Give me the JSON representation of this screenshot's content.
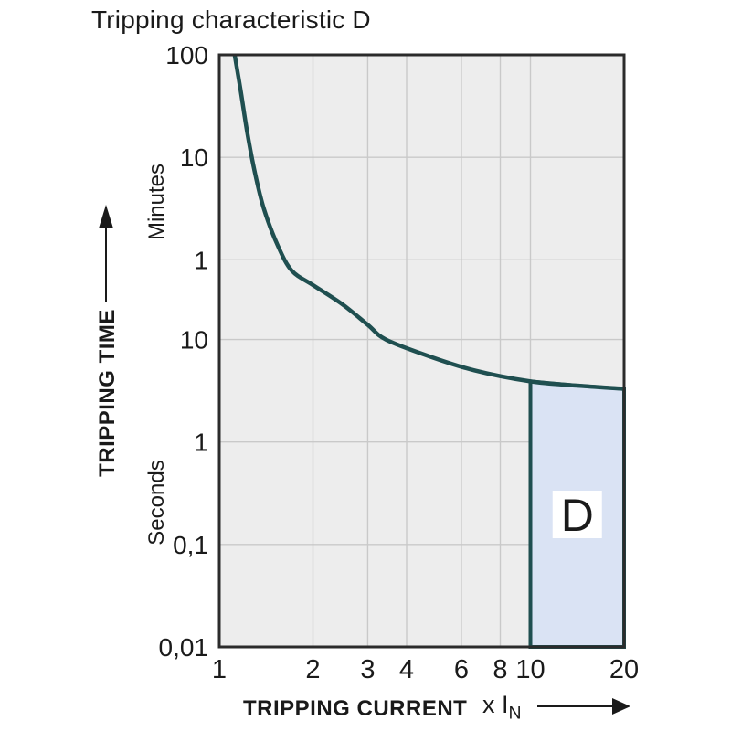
{
  "title": "Tripping characteristic D",
  "colors": {
    "curve": "#1f4f50",
    "region_fill": "#dae3f4",
    "region_border": "#1f4f50",
    "region_label_bg": "#ffffff",
    "plot_bg": "#ededed",
    "gridline": "#c9c9c9",
    "plot_border": "#2b2b2b",
    "text": "#1a1a1a"
  },
  "chart_data": {
    "type": "line",
    "title": "Tripping characteristic D",
    "x_axis": {
      "label": "TRIPPING CURRENT",
      "unit_prefix": "x I",
      "unit_sub": "N",
      "scale": "log",
      "range": [
        1,
        20
      ],
      "ticks": [
        {
          "value": 1,
          "label": "1"
        },
        {
          "value": 2,
          "label": "2"
        },
        {
          "value": 3,
          "label": "3"
        },
        {
          "value": 4,
          "label": "4"
        },
        {
          "value": 6,
          "label": "6"
        },
        {
          "value": 8,
          "label": "8"
        },
        {
          "value": 10,
          "label": "10"
        },
        {
          "value": 20,
          "label": "20"
        }
      ]
    },
    "y_axis": {
      "label": "TRIPPING TIME",
      "scale": "log",
      "range_seconds": [
        0.01,
        6000
      ],
      "unit_upper": "Minutes",
      "unit_lower": "Seconds",
      "ticks": [
        {
          "seconds": 6000,
          "label": "100"
        },
        {
          "seconds": 600,
          "label": "10"
        },
        {
          "seconds": 60,
          "label": "1"
        },
        {
          "seconds": 10,
          "label": "10"
        },
        {
          "seconds": 1,
          "label": "1"
        },
        {
          "seconds": 0.1,
          "label": "0,1"
        },
        {
          "seconds": 0.01,
          "label": "0,01"
        }
      ]
    },
    "series": [
      {
        "name": "tripping-curve",
        "points": [
          [
            1.12,
            6000
          ],
          [
            1.17,
            2750
          ],
          [
            1.23,
            1045
          ],
          [
            1.3,
            432
          ],
          [
            1.39,
            190
          ],
          [
            1.54,
            83
          ],
          [
            1.71,
            47
          ],
          [
            2.0,
            34
          ],
          [
            2.49,
            22
          ],
          [
            3.0,
            13.9
          ],
          [
            3.43,
            10
          ],
          [
            4.7,
            6.9
          ],
          [
            6.6,
            5.0
          ],
          [
            10,
            3.9
          ],
          [
            14.1,
            3.55
          ],
          [
            20,
            3.3
          ]
        ]
      }
    ],
    "region": {
      "label": "D",
      "x_range": [
        10,
        20
      ],
      "y_bottom_seconds": 0.01,
      "top_seconds_at_x10": 3.9,
      "top_seconds_at_x20": 3.3
    }
  }
}
